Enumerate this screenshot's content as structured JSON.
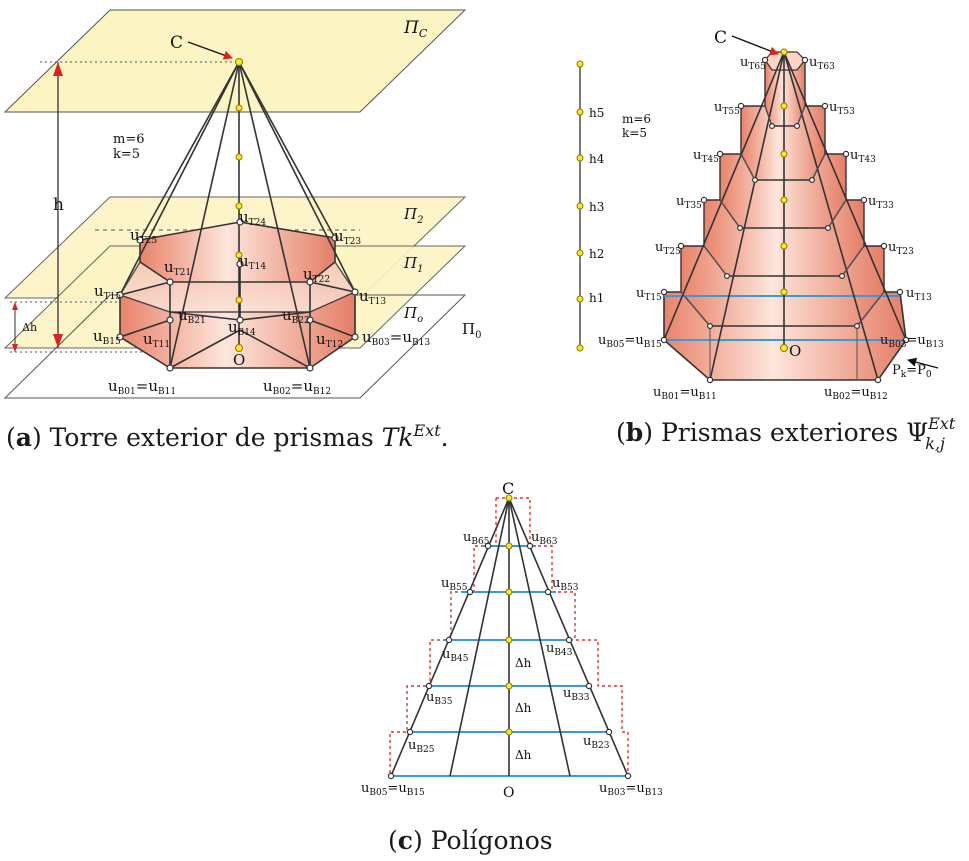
{
  "params": {
    "m": "m=6",
    "k": "k=5"
  },
  "symbols": {
    "C": "C",
    "O": "O",
    "h": "h",
    "dh": "Δh",
    "pi0": "Π",
    "pi0_sub": "0",
    "pk": "P",
    "pk_sub": "k",
    "p0_eq": "=P",
    "p0_sub": "0"
  },
  "plane_labels": {
    "pc": "Π",
    "pc_sub": "C",
    "p2": "Π",
    "p2_sub": "2",
    "p1": "Π",
    "p1_sub": "1",
    "po": "Π",
    "po_sub": "o"
  },
  "heights": [
    "h5",
    "h4",
    "h3",
    "h2",
    "h1"
  ],
  "panel_a_labels": {
    "T24": "T24",
    "T25": "T25",
    "T23": "T23",
    "T21": "T21",
    "T14": "T14",
    "T22": "T22",
    "T15": "T15",
    "T13": "T13",
    "B21": "B21",
    "B22": "B22",
    "B15": "B15",
    "T11": "T11",
    "B14": "B14",
    "T12": "T12",
    "B03B13": [
      "B03",
      "B13"
    ],
    "B01B11": [
      "B01",
      "B11"
    ],
    "B02B12": [
      "B02",
      "B12"
    ]
  },
  "panel_b_labels": {
    "T65": "T65",
    "T63": "T63",
    "T55": "T55",
    "T53": "T53",
    "T45": "T45",
    "T43": "T43",
    "T35": "T35",
    "T33": "T33",
    "T25": "T25",
    "T23": "T23",
    "T15": "T15",
    "T13": "T13",
    "B05B15": [
      "B05",
      "B15"
    ],
    "B03B13": [
      "B03",
      "B13"
    ],
    "B01B11": [
      "B01",
      "B11"
    ],
    "B02B12": [
      "B02",
      "B12"
    ]
  },
  "panel_c_labels": {
    "B65": "B65",
    "B63": "B63",
    "B55": "B55",
    "B53": "B53",
    "B45": "B45",
    "B43": "B43",
    "B35": "B35",
    "B33": "B33",
    "B25": "B25",
    "B23": "B23",
    "B05B15": [
      "B05",
      "B15"
    ],
    "B03B13": [
      "B03",
      "B13"
    ]
  },
  "captions": {
    "a_letter": "a",
    "a_text": "Torre exterior de prismas",
    "b_letter": "b",
    "b_text": "Prismas exteriores",
    "c_letter": "c",
    "c_text": "Polígonos"
  },
  "colors": {
    "plane_fill": "#fdf4c4",
    "prism_fill": "#f1a48a",
    "blue": "#3a9ad9",
    "red_dash": "#d63a3a",
    "yellow_point": "#ffe81a"
  }
}
